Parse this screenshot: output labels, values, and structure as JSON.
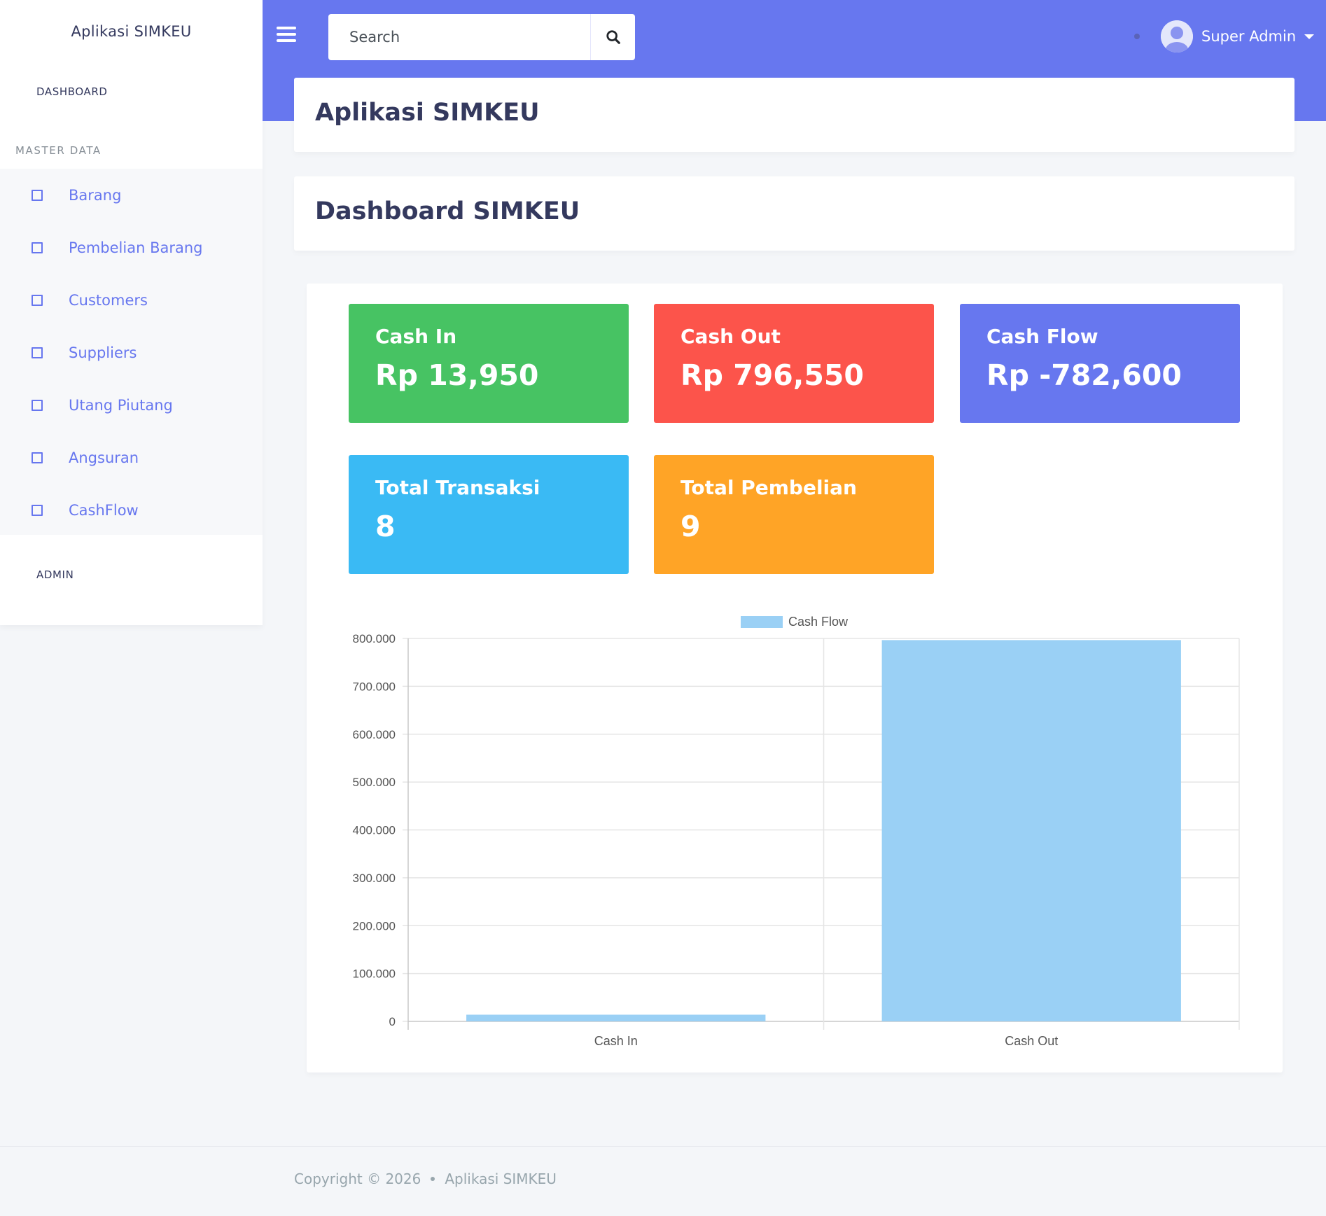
{
  "app": {
    "brand": "Aplikasi SIMKEU"
  },
  "navbar": {
    "search_placeholder": "Search",
    "user_name": "Super Admin"
  },
  "sidebar": {
    "header_dashboard": "DASHBOARD",
    "header_master": "MASTER DATA",
    "header_admin": "ADMIN",
    "items": [
      {
        "label": "Barang"
      },
      {
        "label": "Pembelian Barang"
      },
      {
        "label": "Customers"
      },
      {
        "label": "Suppliers"
      },
      {
        "label": "Utang Piutang"
      },
      {
        "label": "Angsuran"
      },
      {
        "label": "CashFlow"
      }
    ]
  },
  "page": {
    "title": "Aplikasi SIMKEU",
    "section_title": "Dashboard SIMKEU"
  },
  "stats": [
    {
      "title": "Cash In",
      "value": "Rp 13,950",
      "color": "#47c363"
    },
    {
      "title": "Cash Out",
      "value": "Rp 796,550",
      "color": "#fc544b"
    },
    {
      "title": "Cash Flow",
      "value": "Rp -782,600",
      "color": "#6777ef"
    },
    {
      "title": "Total Transaksi",
      "value": "8",
      "color": "#3abaf4"
    },
    {
      "title": "Total Pembelian",
      "value": "9",
      "color": "#ffa426"
    }
  ],
  "chart_data": {
    "type": "bar",
    "categories": [
      "Cash In",
      "Cash Out"
    ],
    "series": [
      {
        "name": "Cash Flow",
        "values": [
          13950,
          796550
        ],
        "color": "#9ad0f5"
      }
    ],
    "ylim": [
      0,
      800000
    ],
    "yticks": [
      "800.000",
      "700.000",
      "600.000",
      "500.000",
      "400.000",
      "300.000",
      "200.000",
      "100.000",
      "0"
    ],
    "grid": true,
    "legend": "top-center"
  },
  "footer": {
    "copyright": "Copyright © 2026",
    "app_name": "Aplikasi SIMKEU"
  }
}
